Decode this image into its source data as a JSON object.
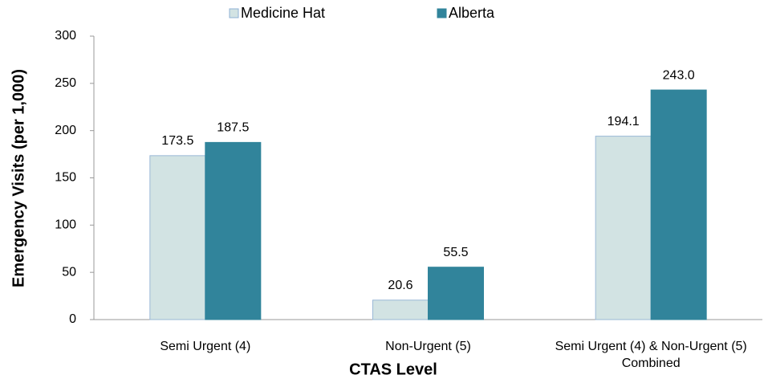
{
  "chart_data": {
    "type": "bar",
    "y_label": "Emergency Visits (per 1,000)",
    "x_label": "CTAS Level",
    "categories": [
      "Semi Urgent (4)",
      "Non-Urgent (5)",
      "Semi Urgent (4) & Non-Urgent (5) Combined"
    ],
    "series": [
      {
        "name": "Medicine Hat",
        "color": "#d2e3e3",
        "values": [
          173.5,
          20.6,
          194.1
        ],
        "value_labels": [
          "173.5",
          "20.6",
          "194.1"
        ]
      },
      {
        "name": "Alberta",
        "color": "#31849b",
        "values": [
          187.5,
          55.5,
          243.0
        ],
        "value_labels": [
          "187.5",
          "55.5",
          "243.0"
        ]
      }
    ],
    "ylim": [
      0,
      300
    ],
    "yticks": [
      0,
      50,
      100,
      150,
      200,
      250,
      300
    ],
    "grid": false
  }
}
